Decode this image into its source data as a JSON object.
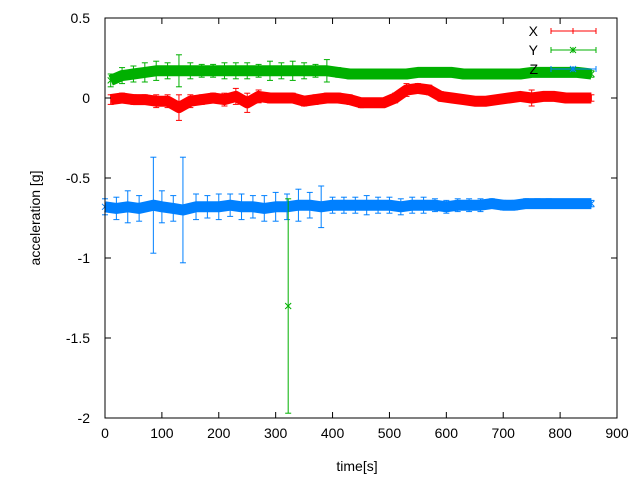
{
  "chart_data": {
    "type": "line",
    "xlabel": "time[s]",
    "ylabel": "acceleration [g]",
    "xlim": [
      0,
      900
    ],
    "ylim": [
      -2,
      0.5
    ],
    "xticks": [
      "0",
      "100",
      "200",
      "300",
      "400",
      "500",
      "600",
      "700",
      "800",
      "900"
    ],
    "yticks": [
      "0.5",
      "0",
      "-0.5",
      "-1",
      "-1.5",
      "-2"
    ],
    "grid": false,
    "legend": "top-right",
    "error_bars": true,
    "series": [
      {
        "name": "X",
        "color": "#ff0000",
        "marker": "none",
        "x": [
          10,
          30,
          50,
          70,
          90,
          110,
          130,
          150,
          170,
          190,
          210,
          230,
          250,
          270,
          290,
          310,
          330,
          350,
          370,
          390,
          410,
          430,
          450,
          470,
          490,
          510,
          530,
          550,
          570,
          590,
          610,
          630,
          650,
          670,
          690,
          710,
          730,
          750,
          770,
          790,
          810,
          830,
          855
        ],
        "y": [
          -0.01,
          0.0,
          -0.01,
          -0.01,
          -0.02,
          -0.02,
          -0.06,
          -0.02,
          -0.01,
          0.0,
          -0.01,
          0.01,
          -0.03,
          0.01,
          0.0,
          0.0,
          0.0,
          -0.02,
          -0.01,
          0.0,
          0.0,
          -0.01,
          -0.03,
          -0.03,
          -0.03,
          0.0,
          0.05,
          0.06,
          0.05,
          0.01,
          0.0,
          -0.01,
          -0.02,
          -0.02,
          -0.01,
          0.0,
          0.01,
          0.0,
          0.01,
          0.01,
          0.0,
          0.0,
          0.0
        ],
        "err": [
          0.03,
          0.03,
          0.03,
          0.03,
          0.04,
          0.04,
          0.08,
          0.04,
          0.03,
          0.03,
          0.04,
          0.05,
          0.06,
          0.04,
          0.03,
          0.03,
          0.03,
          0.03,
          0.03,
          0.03,
          0.03,
          0.03,
          0.03,
          0.02,
          0.02,
          0.03,
          0.04,
          0.03,
          0.03,
          0.03,
          0.02,
          0.02,
          0.02,
          0.02,
          0.02,
          0.02,
          0.02,
          0.05,
          0.02,
          0.02,
          0.02,
          0.02,
          0.02
        ]
      },
      {
        "name": "Y",
        "color": "#00b000",
        "marker": "x",
        "x": [
          10,
          30,
          50,
          70,
          90,
          110,
          130,
          150,
          170,
          190,
          210,
          230,
          250,
          270,
          290,
          310,
          330,
          350,
          370,
          390,
          410,
          430,
          450,
          470,
          490,
          510,
          530,
          550,
          570,
          590,
          610,
          630,
          650,
          670,
          690,
          710,
          730,
          750,
          770,
          790,
          810,
          830,
          855
        ],
        "y": [
          0.11,
          0.14,
          0.15,
          0.16,
          0.17,
          0.17,
          0.17,
          0.17,
          0.17,
          0.17,
          0.17,
          0.17,
          0.17,
          0.17,
          0.17,
          0.17,
          0.17,
          0.17,
          0.17,
          0.17,
          0.16,
          0.15,
          0.15,
          0.15,
          0.15,
          0.15,
          0.15,
          0.16,
          0.16,
          0.16,
          0.16,
          0.15,
          0.15,
          0.15,
          0.15,
          0.15,
          0.15,
          0.16,
          0.16,
          0.16,
          0.16,
          0.16,
          0.15
        ],
        "err": [
          0.04,
          0.05,
          0.05,
          0.06,
          0.06,
          0.05,
          0.1,
          0.05,
          0.04,
          0.04,
          0.05,
          0.05,
          0.05,
          0.04,
          0.06,
          0.05,
          0.06,
          0.05,
          0.04,
          0.07,
          0.03,
          0.03,
          0.03,
          0.02,
          0.02,
          0.02,
          0.02,
          0.02,
          0.02,
          0.02,
          0.02,
          0.02,
          0.02,
          0.02,
          0.02,
          0.02,
          0.02,
          0.02,
          0.02,
          0.02,
          0.02,
          0.02,
          0.02
        ]
      },
      {
        "name": "Z",
        "color": "#0080ff",
        "marker": "x",
        "x": [
          0,
          20,
          40,
          60,
          85,
          100,
          120,
          137,
          160,
          180,
          200,
          220,
          240,
          260,
          280,
          300,
          320,
          340,
          360,
          380,
          400,
          420,
          440,
          460,
          480,
          500,
          520,
          540,
          560,
          580,
          600,
          620,
          640,
          660,
          680,
          700,
          720,
          740,
          760,
          780,
          800,
          820,
          840,
          855
        ],
        "y": [
          -0.68,
          -0.69,
          -0.68,
          -0.69,
          -0.67,
          -0.68,
          -0.69,
          -0.7,
          -0.68,
          -0.68,
          -0.68,
          -0.67,
          -0.68,
          -0.68,
          -0.69,
          -0.68,
          -0.68,
          -0.67,
          -0.67,
          -0.68,
          -0.67,
          -0.67,
          -0.67,
          -0.67,
          -0.67,
          -0.67,
          -0.68,
          -0.67,
          -0.67,
          -0.67,
          -0.68,
          -0.67,
          -0.67,
          -0.67,
          -0.66,
          -0.67,
          -0.67,
          -0.66,
          -0.66,
          -0.66,
          -0.66,
          -0.66,
          -0.66,
          -0.66
        ],
        "err": [
          0.05,
          0.07,
          0.1,
          0.08,
          0.3,
          0.1,
          0.08,
          0.33,
          0.08,
          0.07,
          0.08,
          0.07,
          0.08,
          0.07,
          0.08,
          0.09,
          0.08,
          0.1,
          0.08,
          0.13,
          0.05,
          0.05,
          0.05,
          0.06,
          0.05,
          0.05,
          0.05,
          0.05,
          0.05,
          0.04,
          0.04,
          0.04,
          0.04,
          0.04,
          0.03,
          0.03,
          0.03,
          0.03,
          0.03,
          0.03,
          0.02,
          0.02,
          0.02,
          0.02
        ]
      },
      {
        "color": "#00b000",
        "marker": "x",
        "x": [
          322
        ],
        "y": [
          -1.3
        ],
        "err": [
          0.67
        ]
      }
    ]
  }
}
